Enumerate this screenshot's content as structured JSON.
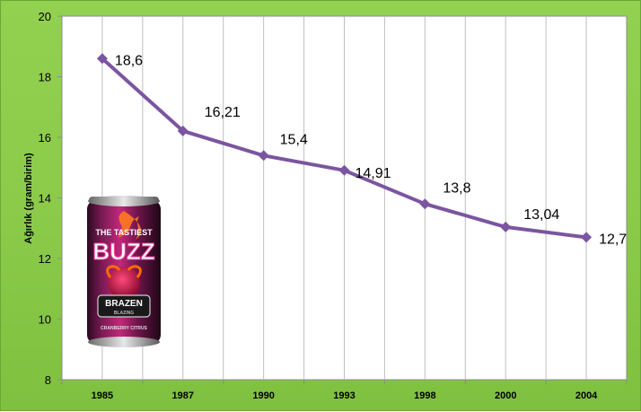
{
  "chart_data": {
    "type": "line",
    "categories": [
      "1985",
      "1987",
      "1990",
      "1993",
      "1998",
      "2000",
      "2004"
    ],
    "series": [
      {
        "values": [
          18.6,
          16.21,
          15.4,
          14.91,
          13.8,
          13.04,
          12.7
        ],
        "labels": [
          "18,6",
          "16,21",
          "15,4",
          "14,91",
          "13,8",
          "13,04",
          "12,7"
        ]
      }
    ],
    "title": "",
    "xlabel": "",
    "ylabel": "Ağırlık (gram/birim)",
    "ylim": [
      8,
      20
    ],
    "yticks": [
      8,
      10,
      12,
      14,
      16,
      18,
      20
    ],
    "grid": "vertical",
    "line_color": "#7b55a0",
    "background_color": "#92d050"
  },
  "can": {
    "line1": "THE TASTIEST",
    "line2": "BUZZ",
    "line3": "BRAZEN",
    "line4": "BLAZING",
    "line5": "CRANBERRY CITRUS"
  }
}
